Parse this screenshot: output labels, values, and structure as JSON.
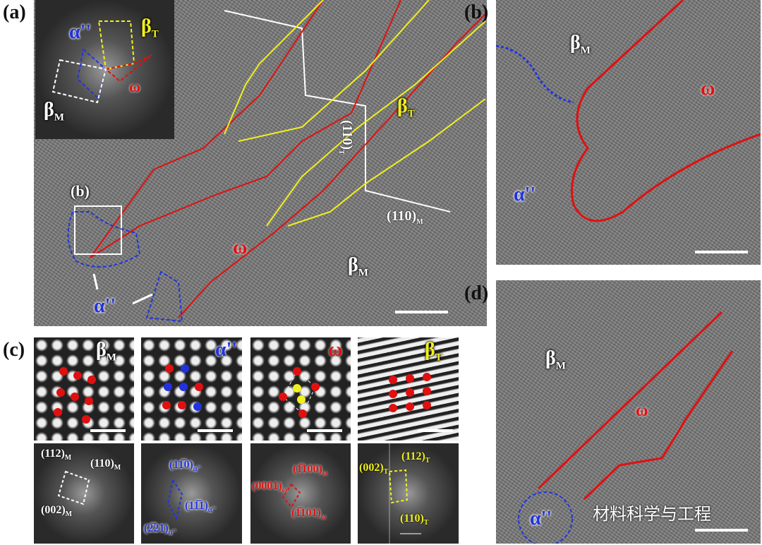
{
  "panel_labels": {
    "a": "(a)",
    "b": "(b)",
    "c": "(c)",
    "d": "(d)"
  },
  "phases": {
    "beta_M": {
      "main": "β",
      "sub": "M"
    },
    "beta_T": {
      "main": "β",
      "sub": "T"
    },
    "alpha": {
      "main": "α''",
      "sub": ""
    },
    "omega": {
      "main": "ω",
      "sub": ""
    }
  },
  "panel_a": {
    "inset_box_label": "(b)",
    "plane_T": {
      "main": "(110)",
      "sub": "T"
    },
    "plane_M": {
      "main": "(110)",
      "sub": "M"
    }
  },
  "panel_c_fft": {
    "beta_M": [
      {
        "main": "(112)",
        "sub": "M"
      },
      {
        "main": "(110)",
        "sub": "M"
      },
      {
        "main": "(002)",
        "sub": "M"
      }
    ],
    "alpha": [
      {
        "main": "(11̅0)",
        "sub": "α''"
      },
      {
        "main": "(11̅1)",
        "sub": "α''"
      },
      {
        "main": "(2̅21)",
        "sub": "α''"
      }
    ],
    "omega": [
      {
        "main": "(0001)",
        "sub": "ω"
      },
      {
        "main": "(1̅100)",
        "sub": "ω"
      },
      {
        "main": "(1̅101)",
        "sub": "ω"
      }
    ],
    "beta_T": [
      {
        "main": "(002)",
        "sub": "T"
      },
      {
        "main": "(112)",
        "sub": "T"
      },
      {
        "main": "(110)",
        "sub": "T"
      }
    ]
  },
  "watermark": "材料科学与工程",
  "colors": {
    "omega": "#e01010",
    "alpha": "#2233dd",
    "beta_T": "#f0f020",
    "beta_M": "#ffffff"
  }
}
